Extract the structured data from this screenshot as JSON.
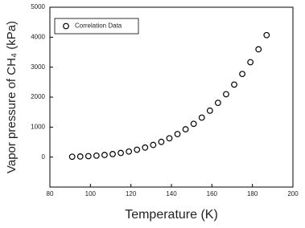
{
  "chart_data": {
    "type": "scatter",
    "xlabel": "Temperature (K)",
    "ylabel": "Vapor pressure of CH₄ (kPa)",
    "series": [
      {
        "name": "Correlation Data",
        "color": "#000000",
        "x": [
          91,
          95,
          99,
          103,
          107,
          111,
          115,
          119,
          123,
          127,
          131,
          135,
          139,
          143,
          147,
          151,
          155,
          159,
          163,
          167,
          171,
          175,
          179,
          183,
          187
        ],
        "values": [
          12,
          20,
          32,
          48,
          70,
          100,
          138,
          186,
          246,
          318,
          405,
          508,
          628,
          768,
          928,
          1110,
          1317,
          1549,
          1809,
          2098,
          2419,
          2774,
          3166,
          3596,
          4069
        ]
      }
    ],
    "xlim": [
      80,
      200
    ],
    "xticks": [
      80,
      100,
      120,
      140,
      160,
      180,
      200
    ],
    "ylim": [
      -1000,
      5000
    ],
    "yticks": [
      0,
      1000,
      2000,
      3000,
      4000,
      5000
    ],
    "legend": "upper left"
  }
}
